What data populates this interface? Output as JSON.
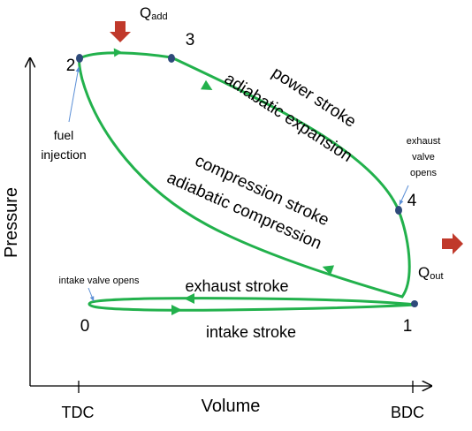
{
  "axes": {
    "y_label": "Pressure",
    "x_label": "Volume",
    "x_ticks": [
      "TDC",
      "BDC"
    ]
  },
  "points": [
    "0",
    "1",
    "2",
    "3",
    "4"
  ],
  "heat": {
    "add_main": "Q",
    "add_sub": "add",
    "out_main": "Q",
    "out_sub": "out"
  },
  "labels": {
    "power_line1": "power stroke",
    "power_line2": "adiabatic expansion",
    "compression_line1": "compression stroke",
    "compression_line2": "adiabatic compression",
    "exhaust": "exhaust stroke",
    "intake": "intake stroke",
    "fuel_line1": "fuel",
    "fuel_line2": "injection",
    "exhaust_valve_line1": "exhaust",
    "exhaust_valve_line2": "valve",
    "exhaust_valve_line3": "opens",
    "intake_valve": "intake valve opens"
  },
  "colors": {
    "cycle": "#22b14c",
    "marker": "#2e4a7a",
    "heat_arrow": "#c0392b",
    "pointer": "#5b8fd6"
  }
}
